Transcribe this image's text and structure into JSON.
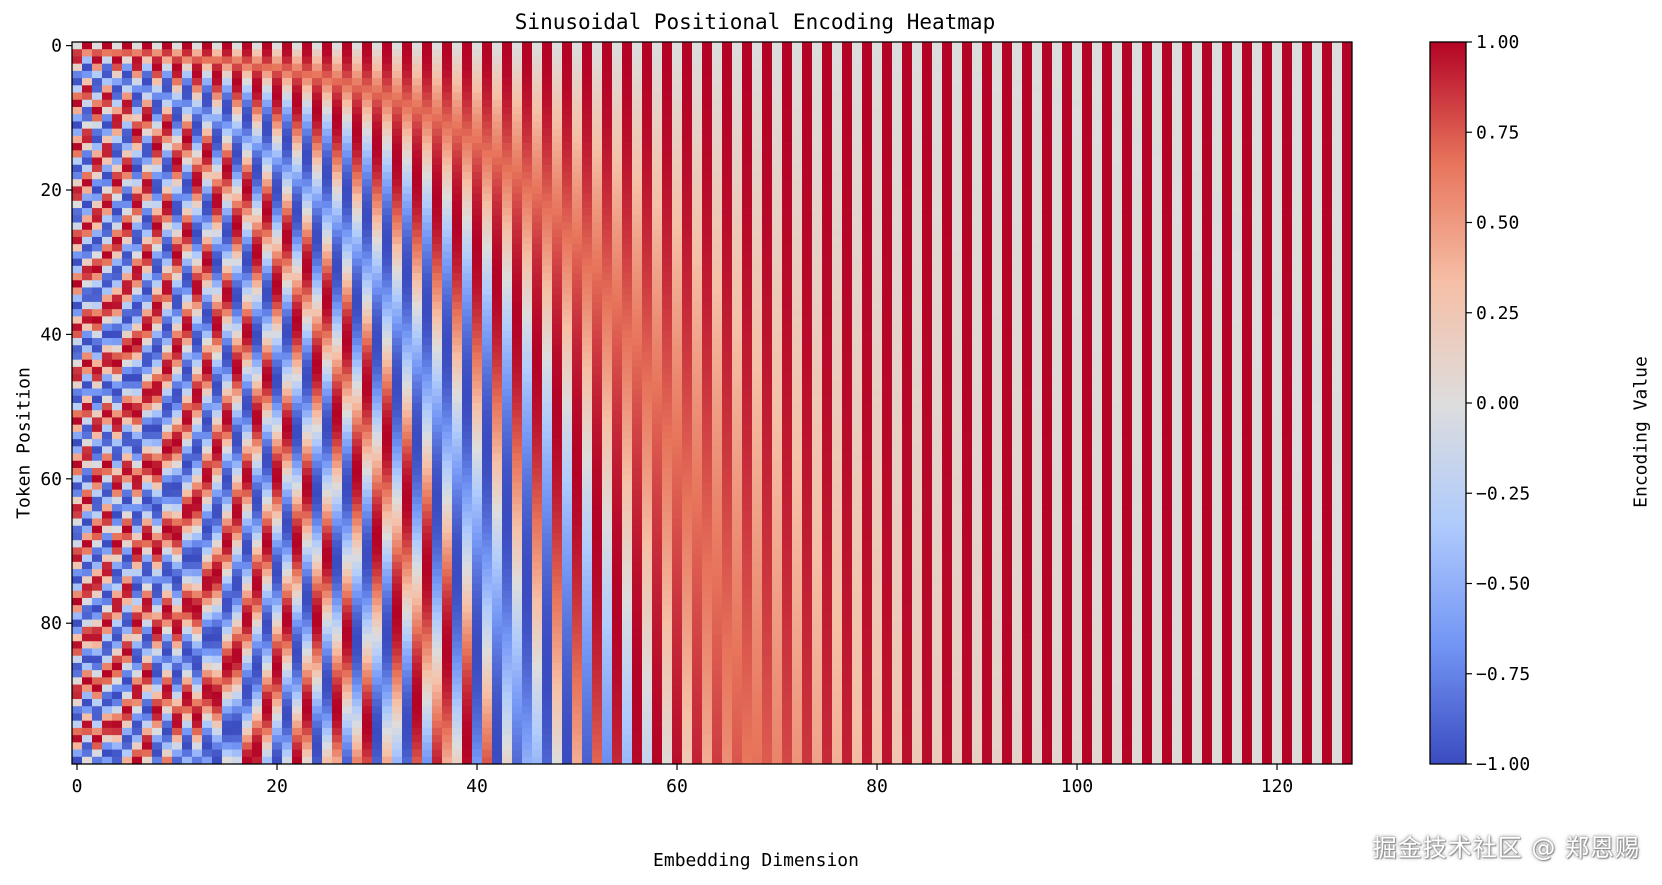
{
  "chart_data": {
    "type": "heatmap",
    "title": "Sinusoidal Positional Encoding Heatmap",
    "xlabel": "Embedding Dimension",
    "ylabel": "Token Position",
    "colorbar_label": "Encoding Value",
    "colormap": "coolwarm",
    "colormap_stops": [
      "#3b4cc0",
      "#7396f5",
      "#b0cbfc",
      "#dddddd",
      "#f6bfa6",
      "#e7745b",
      "#b40426"
    ],
    "positions": 100,
    "dimensions": 128,
    "d_model": 128,
    "value_formula": "PE(pos,2i)=sin(pos/10000^(2i/d_model)), PE(pos,2i+1)=cos(pos/10000^(2i/d_model))",
    "xlim": [
      0,
      128
    ],
    "ylim": [
      100,
      0
    ],
    "xticks": [
      0,
      20,
      40,
      60,
      80,
      100,
      120
    ],
    "yticks": [
      0,
      20,
      40,
      60,
      80
    ],
    "xtick_labels": [
      "0",
      "20",
      "40",
      "60",
      "80",
      "100",
      "120"
    ],
    "ytick_labels": [
      "0",
      "20",
      "40",
      "60",
      "80"
    ],
    "colorbar_range": [
      -1.0,
      1.0
    ],
    "colorbar_ticks": [
      1.0,
      0.75,
      0.5,
      0.25,
      0.0,
      -0.25,
      -0.5,
      -0.75,
      -1.0
    ],
    "colorbar_tick_labels": [
      "1.00",
      "0.75",
      "0.50",
      "0.25",
      "0.00",
      "−0.25",
      "−0.50",
      "−0.75",
      "−1.00"
    ]
  },
  "watermark": "掘金技术社区 @ 郑恩赐"
}
